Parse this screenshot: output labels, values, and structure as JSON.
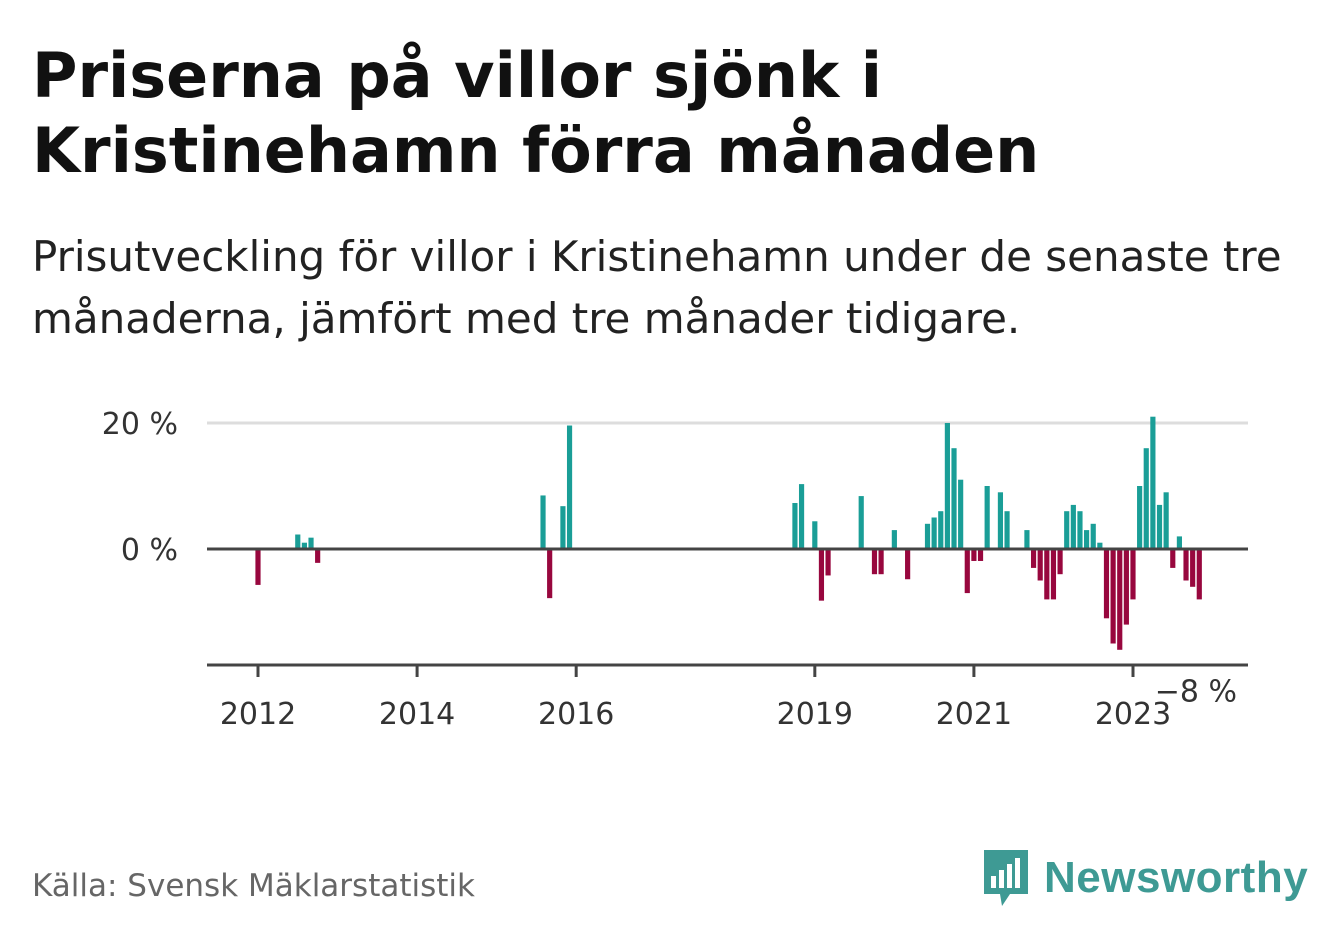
{
  "title": "Priserna på villor sjönk i Kristinehamn förra månaden",
  "subtitle": "Prisutveckling för villor i Kristinehamn under de senaste tre månaderna, jämfört med tre månader tidigare.",
  "source": "Källa: Svensk Mäklarstatistik",
  "brand": {
    "name": "Newsworthy",
    "icon": "newsworthy-logo-icon"
  },
  "colors": {
    "positive": "#1a9e97",
    "negative": "#98073e",
    "gridline": "#dddddd",
    "axis": "#444444"
  },
  "chart_data": {
    "type": "bar",
    "title": "Priserna på villor sjönk i Kristinehamn förra månaden",
    "xlabel": "",
    "ylabel": "",
    "unit": "%",
    "ylim": [
      -18,
      22
    ],
    "grid": true,
    "yticks": [
      {
        "value": 0,
        "label": "0 %"
      },
      {
        "value": 20,
        "label": "20 %"
      }
    ],
    "xticks": [
      {
        "date": "2012-01",
        "label": "2012"
      },
      {
        "date": "2014-01",
        "label": "2014"
      },
      {
        "date": "2016-01",
        "label": "2016"
      },
      {
        "date": "2019-01",
        "label": "2019"
      },
      {
        "date": "2021-01",
        "label": "2021"
      },
      {
        "date": "2023-01",
        "label": "2023"
      }
    ],
    "xrange": [
      "2011-03",
      "2024-05"
    ],
    "annotation": {
      "date": "2023-11",
      "value": -8,
      "label": "−8 %"
    },
    "series": [
      {
        "points": [
          {
            "date": "2012-01",
            "value": -5.7
          },
          {
            "date": "2012-07",
            "value": 2.3
          },
          {
            "date": "2012-08",
            "value": 1.0
          },
          {
            "date": "2012-09",
            "value": 1.8
          },
          {
            "date": "2012-10",
            "value": -2.2
          },
          {
            "date": "2015-08",
            "value": 8.5
          },
          {
            "date": "2015-09",
            "value": -7.8
          },
          {
            "date": "2015-11",
            "value": 6.8
          },
          {
            "date": "2015-12",
            "value": 19.6
          },
          {
            "date": "2018-10",
            "value": 7.3
          },
          {
            "date": "2018-11",
            "value": 10.3
          },
          {
            "date": "2019-01",
            "value": 4.4
          },
          {
            "date": "2019-02",
            "value": -8.2
          },
          {
            "date": "2019-03",
            "value": -4.2
          },
          {
            "date": "2019-08",
            "value": 8.4
          },
          {
            "date": "2019-10",
            "value": -4.0
          },
          {
            "date": "2019-11",
            "value": -4.0
          },
          {
            "date": "2020-01",
            "value": 3.0
          },
          {
            "date": "2020-03",
            "value": -4.8
          },
          {
            "date": "2020-06",
            "value": 4.0
          },
          {
            "date": "2020-07",
            "value": 5.0
          },
          {
            "date": "2020-08",
            "value": 6.0
          },
          {
            "date": "2020-09",
            "value": 20.0
          },
          {
            "date": "2020-10",
            "value": 16.0
          },
          {
            "date": "2020-11",
            "value": 11.0
          },
          {
            "date": "2020-12",
            "value": -7.0
          },
          {
            "date": "2021-01",
            "value": -1.9
          },
          {
            "date": "2021-02",
            "value": -1.9
          },
          {
            "date": "2021-03",
            "value": 10.0
          },
          {
            "date": "2021-05",
            "value": 9.0
          },
          {
            "date": "2021-06",
            "value": 6.0
          },
          {
            "date": "2021-09",
            "value": 3.0
          },
          {
            "date": "2021-10",
            "value": -3.0
          },
          {
            "date": "2021-11",
            "value": -5.0
          },
          {
            "date": "2021-12",
            "value": -8.0
          },
          {
            "date": "2022-01",
            "value": -8.0
          },
          {
            "date": "2022-02",
            "value": -4.0
          },
          {
            "date": "2022-03",
            "value": 6.0
          },
          {
            "date": "2022-04",
            "value": 7.0
          },
          {
            "date": "2022-05",
            "value": 6.0
          },
          {
            "date": "2022-06",
            "value": 3.0
          },
          {
            "date": "2022-07",
            "value": 4.0
          },
          {
            "date": "2022-08",
            "value": 1.0
          },
          {
            "date": "2022-09",
            "value": -11.0
          },
          {
            "date": "2022-10",
            "value": -15.0
          },
          {
            "date": "2022-11",
            "value": -16.0
          },
          {
            "date": "2022-12",
            "value": -12.0
          },
          {
            "date": "2023-01",
            "value": -8.0
          },
          {
            "date": "2023-02",
            "value": 10.0
          },
          {
            "date": "2023-03",
            "value": 16.0
          },
          {
            "date": "2023-04",
            "value": 21.0
          },
          {
            "date": "2023-05",
            "value": 7.0
          },
          {
            "date": "2023-06",
            "value": 9.0
          },
          {
            "date": "2023-07",
            "value": -3.0
          },
          {
            "date": "2023-08",
            "value": 2.0
          },
          {
            "date": "2023-09",
            "value": -5.0
          },
          {
            "date": "2023-10",
            "value": -6.0
          },
          {
            "date": "2023-11",
            "value": -8.0
          }
        ]
      }
    ]
  }
}
